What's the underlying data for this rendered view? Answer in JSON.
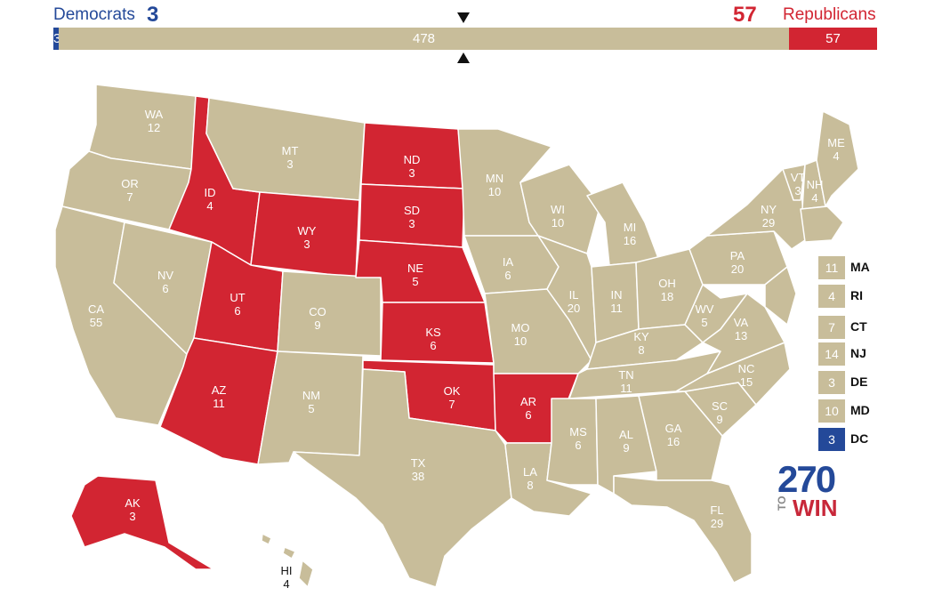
{
  "header": {
    "dem_label": "Democrats",
    "dem_count": "3",
    "rep_count": "57",
    "rep_label": "Republicans"
  },
  "bar": {
    "dem_value": "3",
    "tossup_value": "478",
    "rep_value": "57",
    "dem_fraction": 0.0056,
    "tossup_fraction": 0.8885,
    "rep_fraction": 0.1059
  },
  "colors": {
    "democrat": "#244999",
    "republican": "#d22532",
    "tossup": "#c8bd9a"
  },
  "states": {
    "WA": {
      "abbr": "WA",
      "ev": "12",
      "party": "tossup"
    },
    "OR": {
      "abbr": "OR",
      "ev": "7",
      "party": "tossup"
    },
    "CA": {
      "abbr": "CA",
      "ev": "55",
      "party": "tossup"
    },
    "NV": {
      "abbr": "NV",
      "ev": "6",
      "party": "tossup"
    },
    "ID": {
      "abbr": "ID",
      "ev": "4",
      "party": "rep"
    },
    "MT": {
      "abbr": "MT",
      "ev": "3",
      "party": "tossup"
    },
    "WY": {
      "abbr": "WY",
      "ev": "3",
      "party": "rep"
    },
    "UT": {
      "abbr": "UT",
      "ev": "6",
      "party": "rep"
    },
    "AZ": {
      "abbr": "AZ",
      "ev": "11",
      "party": "rep"
    },
    "CO": {
      "abbr": "CO",
      "ev": "9",
      "party": "tossup"
    },
    "NM": {
      "abbr": "NM",
      "ev": "5",
      "party": "tossup"
    },
    "ND": {
      "abbr": "ND",
      "ev": "3",
      "party": "rep"
    },
    "SD": {
      "abbr": "SD",
      "ev": "3",
      "party": "rep"
    },
    "NE": {
      "abbr": "NE",
      "ev": "5",
      "party": "rep"
    },
    "KS": {
      "abbr": "KS",
      "ev": "6",
      "party": "rep"
    },
    "OK": {
      "abbr": "OK",
      "ev": "7",
      "party": "rep"
    },
    "TX": {
      "abbr": "TX",
      "ev": "38",
      "party": "tossup"
    },
    "MN": {
      "abbr": "MN",
      "ev": "10",
      "party": "tossup"
    },
    "IA": {
      "abbr": "IA",
      "ev": "6",
      "party": "tossup"
    },
    "MO": {
      "abbr": "MO",
      "ev": "10",
      "party": "tossup"
    },
    "AR": {
      "abbr": "AR",
      "ev": "6",
      "party": "rep"
    },
    "LA": {
      "abbr": "LA",
      "ev": "8",
      "party": "tossup"
    },
    "WI": {
      "abbr": "WI",
      "ev": "10",
      "party": "tossup"
    },
    "IL": {
      "abbr": "IL",
      "ev": "20",
      "party": "tossup"
    },
    "MI": {
      "abbr": "MI",
      "ev": "16",
      "party": "tossup"
    },
    "IN": {
      "abbr": "IN",
      "ev": "11",
      "party": "tossup"
    },
    "OH": {
      "abbr": "OH",
      "ev": "18",
      "party": "tossup"
    },
    "KY": {
      "abbr": "KY",
      "ev": "8",
      "party": "tossup"
    },
    "TN": {
      "abbr": "TN",
      "ev": "11",
      "party": "tossup"
    },
    "MS": {
      "abbr": "MS",
      "ev": "6",
      "party": "tossup"
    },
    "AL": {
      "abbr": "AL",
      "ev": "9",
      "party": "tossup"
    },
    "GA": {
      "abbr": "GA",
      "ev": "16",
      "party": "tossup"
    },
    "FL": {
      "abbr": "FL",
      "ev": "29",
      "party": "tossup"
    },
    "SC": {
      "abbr": "SC",
      "ev": "9",
      "party": "tossup"
    },
    "NC": {
      "abbr": "NC",
      "ev": "15",
      "party": "tossup"
    },
    "VA": {
      "abbr": "VA",
      "ev": "13",
      "party": "tossup"
    },
    "WV": {
      "abbr": "WV",
      "ev": "5",
      "party": "tossup"
    },
    "PA": {
      "abbr": "PA",
      "ev": "20",
      "party": "tossup"
    },
    "NY": {
      "abbr": "NY",
      "ev": "29",
      "party": "tossup"
    },
    "VT": {
      "abbr": "VT",
      "ev": "3",
      "party": "tossup"
    },
    "NH": {
      "abbr": "NH",
      "ev": "4",
      "party": "tossup"
    },
    "ME": {
      "abbr": "ME",
      "ev": "4",
      "party": "tossup"
    },
    "AK": {
      "abbr": "AK",
      "ev": "3",
      "party": "rep"
    },
    "HI": {
      "abbr": "HI",
      "ev": "4",
      "party": "tossup"
    }
  },
  "legend": [
    {
      "abbr": "MA",
      "ev": "11",
      "party": "tossup"
    },
    {
      "abbr": "RI",
      "ev": "4",
      "party": "tossup"
    },
    {
      "abbr": "CT",
      "ev": "7",
      "party": "tossup"
    },
    {
      "abbr": "NJ",
      "ev": "14",
      "party": "tossup"
    },
    {
      "abbr": "DE",
      "ev": "3",
      "party": "tossup"
    },
    {
      "abbr": "MD",
      "ev": "10",
      "party": "tossup"
    },
    {
      "abbr": "DC",
      "ev": "3",
      "party": "dem"
    }
  ],
  "logo": {
    "number": "270",
    "to": "TO",
    "win": "WIN"
  }
}
